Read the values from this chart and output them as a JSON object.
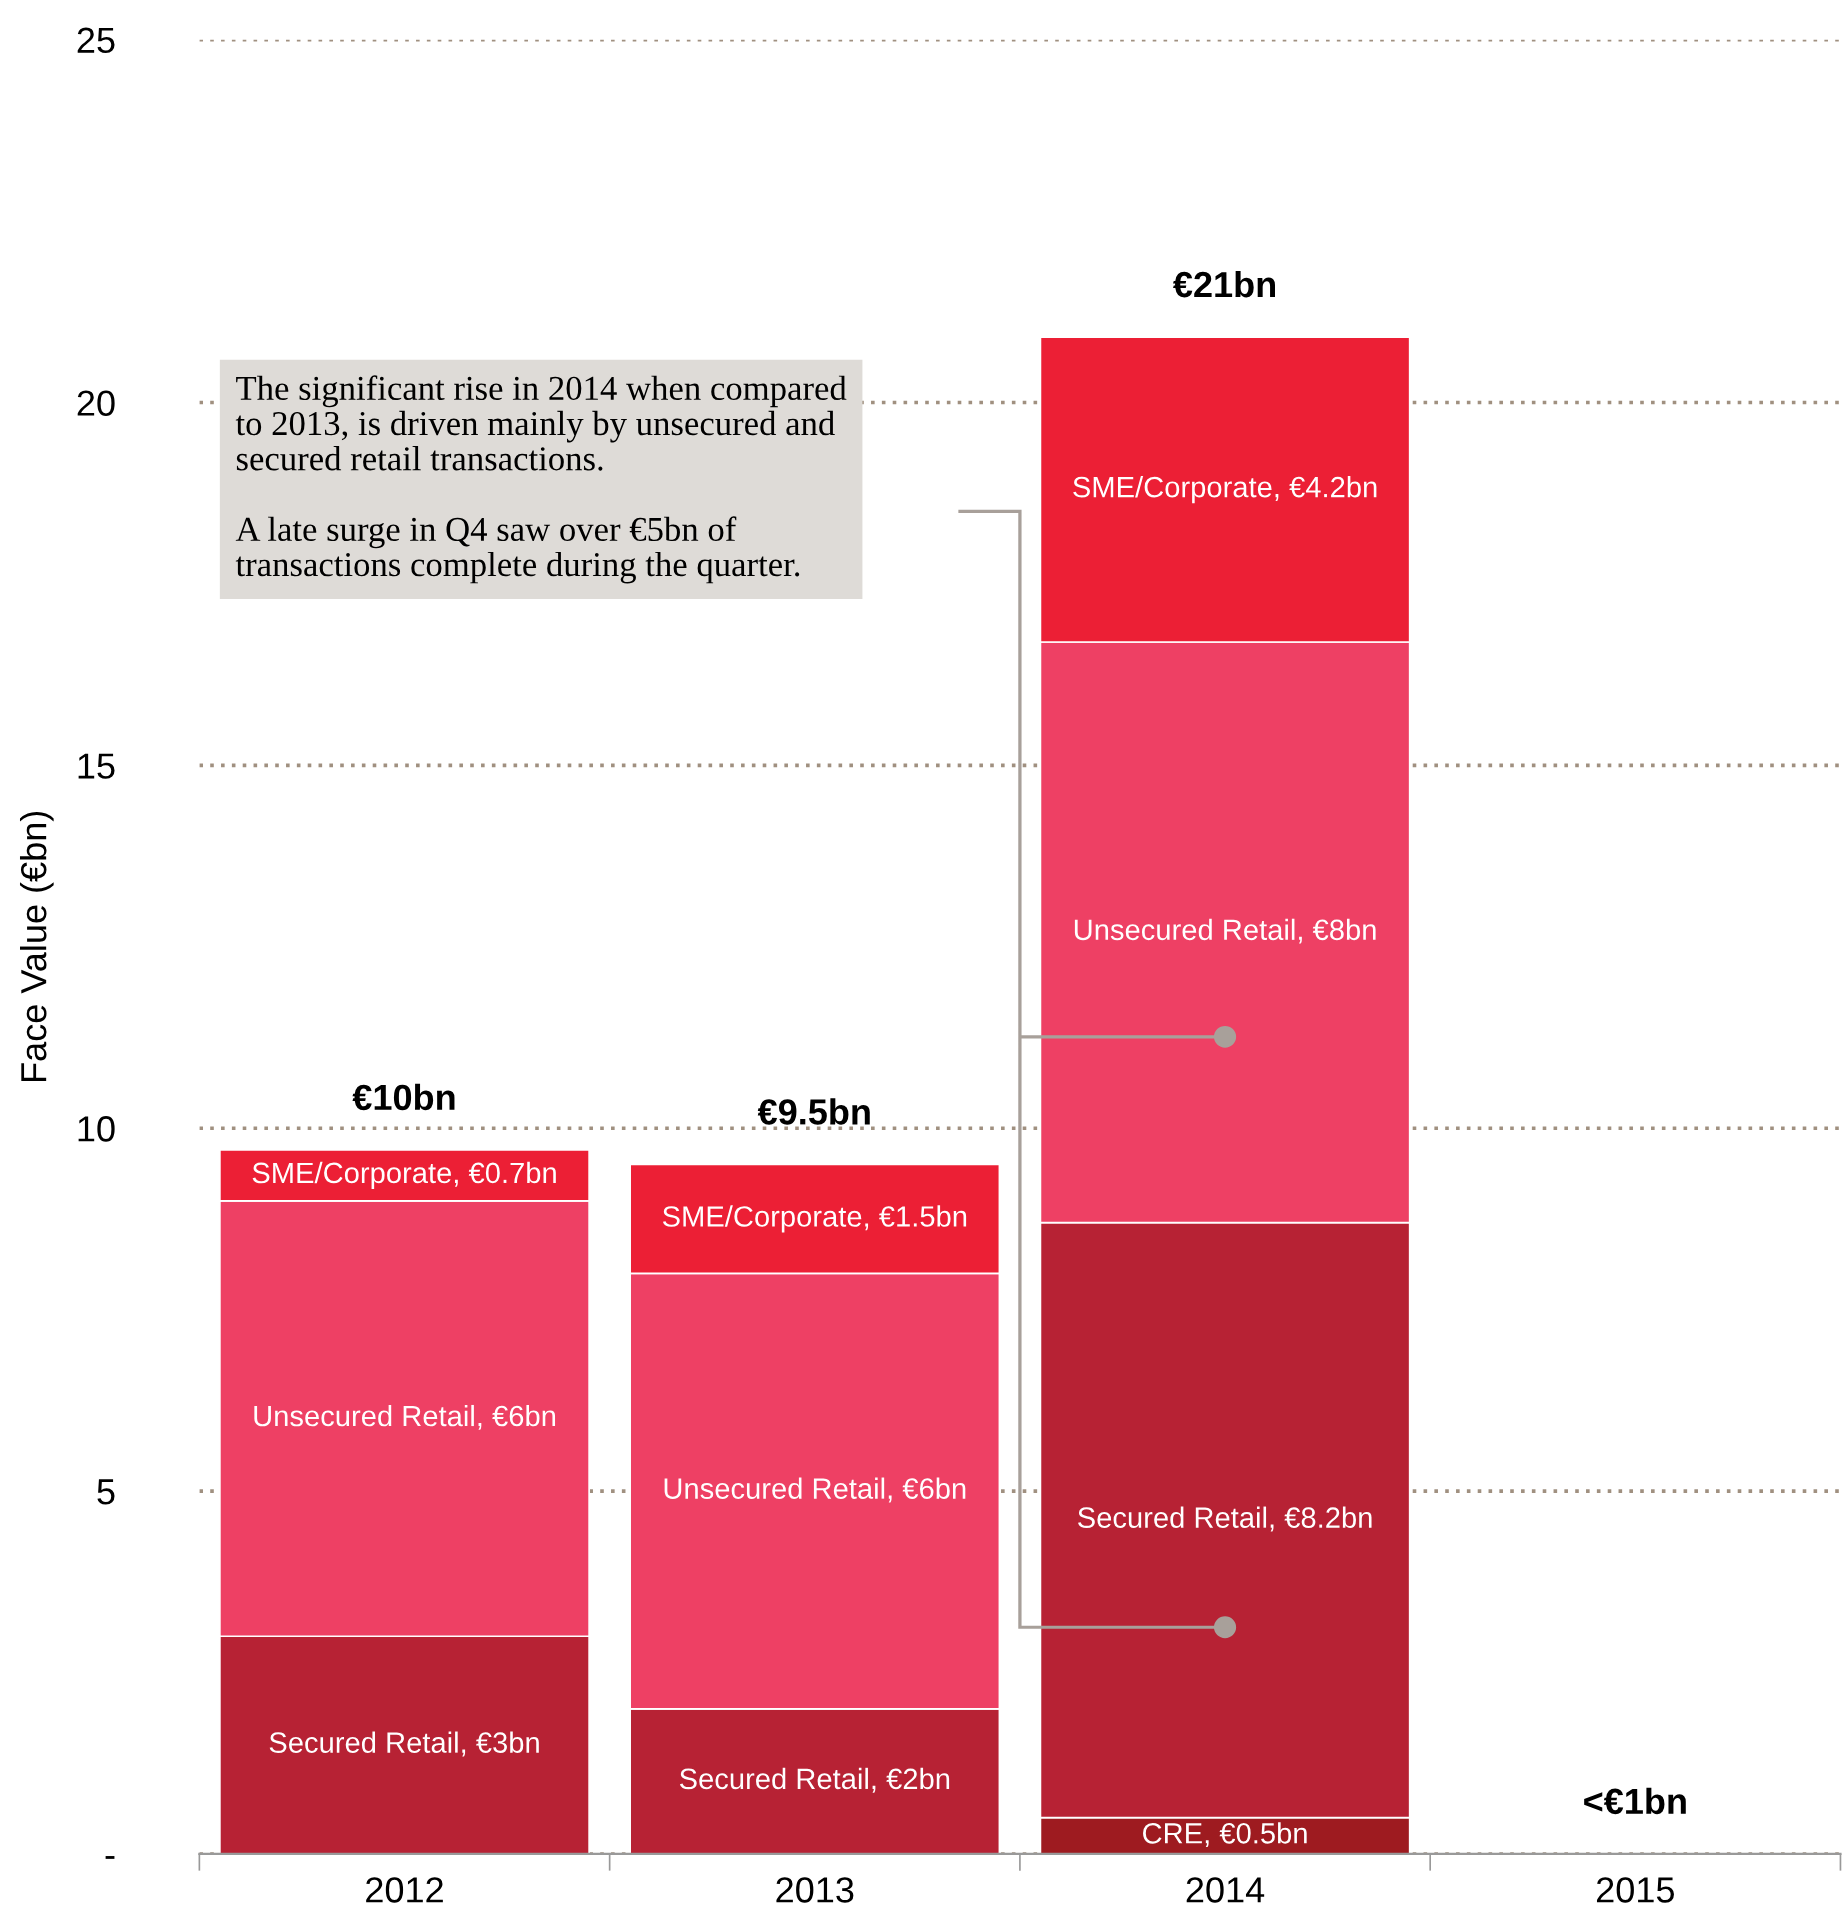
{
  "chart_data": {
    "type": "bar",
    "stacked": true,
    "ylabel": "Face Value (€bn)",
    "categories": [
      "2012",
      "2013",
      "2014",
      "2015"
    ],
    "series": [
      {
        "color": "#9e1b20",
        "values": [
          null,
          null,
          0.5,
          null
        ],
        "value_labels": [
          null,
          null,
          "CRE, €0.5bn",
          null
        ]
      },
      {
        "color": "#b72234",
        "values": [
          3,
          2,
          8.2,
          null
        ],
        "value_labels": [
          "Secured Retail, €3bn",
          "Secured Retail, €2bn",
          "Secured Retail, €8.2bn",
          null
        ]
      },
      {
        "color": "#ee4064",
        "values": [
          6,
          6,
          8,
          null
        ],
        "value_labels": [
          "Unsecured Retail, €6bn",
          "Unsecured Retail, €6bn",
          "Unsecured Retail, €8bn",
          null
        ]
      },
      {
        "color": "#ec1f35",
        "values": [
          0.7,
          1.5,
          4.2,
          null
        ],
        "value_labels": [
          "SME/Corporate, €0.7bn",
          "SME/Corporate, €1.5bn",
          "SME/Corporate, €4.2bn",
          null
        ]
      }
    ],
    "totals": [
      "€10bn",
      "€9.5bn",
      "€21bn",
      "<€1bn"
    ],
    "ylim": [
      0,
      25
    ],
    "yticks": [
      {
        "value": 0,
        "label": "-"
      },
      5,
      10,
      15,
      20,
      25
    ],
    "grid": "y",
    "annotations": [
      "The significant rise in 2014 when compared\nto 2013, is driven mainly by unsecured and\nsecured retail transactions.\n\nA late surge in Q4 saw over €5bn of\ntransactions complete during the quarter."
    ]
  }
}
